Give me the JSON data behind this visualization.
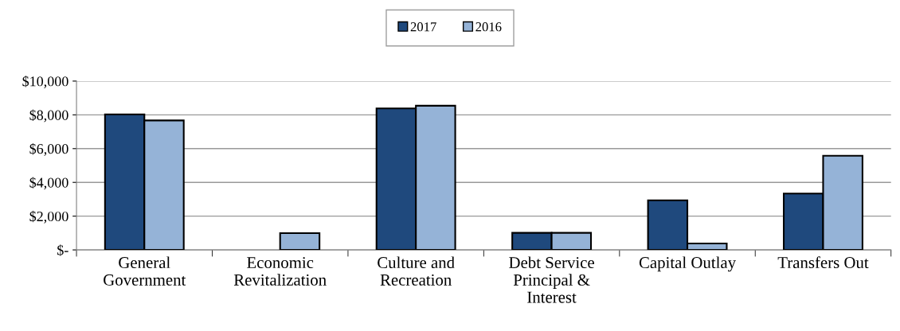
{
  "chart_data": {
    "type": "bar",
    "categories": [
      "General\nGovernment",
      "Economic\nRevitalization",
      "Culture and\nRecreation",
      "Debt Service\nPrincipal &\nInterest",
      "Capital Outlay",
      "Transfers Out"
    ],
    "series": [
      {
        "name": "2017",
        "color": "#1f497d",
        "values": [
          8030,
          null,
          8380,
          1010,
          2940,
          3340
        ]
      },
      {
        "name": "2016",
        "color": "#95b3d7",
        "values": [
          7670,
          990,
          8540,
          1010,
          380,
          5580
        ]
      }
    ],
    "ylim": [
      0,
      10000
    ],
    "yticks": [
      {
        "value": 0,
        "label": "$-"
      },
      {
        "value": 2000,
        "label": "$2,000"
      },
      {
        "value": 4000,
        "label": "$4,000"
      },
      {
        "value": 6000,
        "label": "$6,000"
      },
      {
        "value": 8000,
        "label": "$8,000"
      },
      {
        "value": 10000,
        "label": "$10,000"
      }
    ],
    "grid": "y",
    "legend": "top"
  }
}
